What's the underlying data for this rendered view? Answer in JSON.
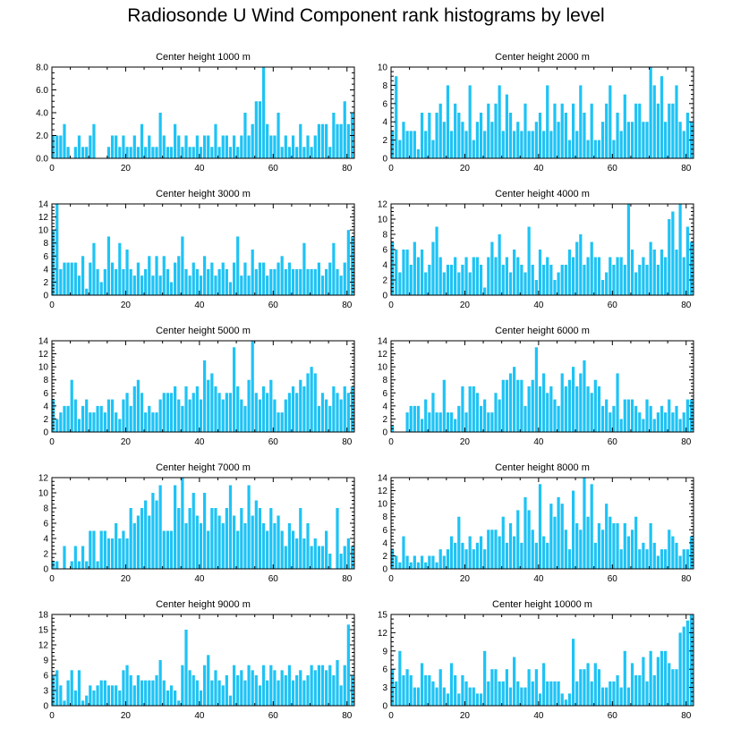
{
  "figure": {
    "title": "Radiosonde U Wind Component rank histograms by level"
  },
  "chart_data": [
    {
      "type": "bar",
      "title": "Center height 1000 m",
      "xlim": [
        0,
        82
      ],
      "ylim": [
        0,
        8
      ],
      "yticks": [
        0,
        2,
        4,
        6,
        8
      ],
      "ytick_labels": [
        "0.0",
        "2.0",
        "4.0",
        "6.0",
        "8.0"
      ],
      "xticks": [
        0,
        20,
        40,
        60,
        80
      ],
      "xtick_labels": [
        "0",
        "20",
        "40",
        "60",
        "80"
      ],
      "values": [
        2,
        2,
        2,
        3,
        1,
        0,
        1,
        2,
        1,
        1,
        2,
        3,
        0,
        0,
        0,
        1,
        2,
        2,
        1,
        2,
        1,
        1,
        2,
        1,
        3,
        1,
        2,
        1,
        1,
        4,
        2,
        1,
        1,
        3,
        2,
        1,
        2,
        1,
        1,
        2,
        1,
        2,
        2,
        1,
        3,
        1,
        2,
        2,
        1,
        2,
        1,
        2,
        4,
        2,
        3,
        5,
        5,
        8,
        3,
        2,
        2,
        4,
        1,
        2,
        1,
        2,
        1,
        3,
        1,
        2,
        1,
        2,
        3,
        3,
        3,
        1,
        4,
        3,
        3,
        5,
        3,
        4
      ]
    },
    {
      "type": "bar",
      "title": "Center height 2000 m",
      "xlim": [
        0,
        82
      ],
      "ylim": [
        0,
        10
      ],
      "yticks": [
        0,
        2,
        4,
        6,
        8,
        10
      ],
      "ytick_labels": [
        "0",
        "2",
        "4",
        "6",
        "8",
        "10"
      ],
      "xticks": [
        0,
        20,
        40,
        60,
        80
      ],
      "xtick_labels": [
        "0",
        "20",
        "40",
        "60",
        "80"
      ],
      "values": [
        3,
        9,
        2,
        4,
        3,
        3,
        3,
        1,
        5,
        3,
        5,
        2,
        5,
        6,
        4,
        8,
        3,
        6,
        5,
        4,
        3,
        8,
        2,
        4,
        5,
        3,
        6,
        4,
        6,
        8,
        3,
        7,
        5,
        3,
        4,
        3,
        6,
        3,
        3,
        4,
        5,
        3,
        8,
        3,
        6,
        4,
        6,
        5,
        2,
        6,
        3,
        8,
        5,
        2,
        6,
        2,
        2,
        4,
        6,
        8,
        2,
        5,
        3,
        7,
        4,
        4,
        6,
        6,
        4,
        4,
        10,
        8,
        6,
        9,
        4,
        6,
        6,
        8,
        4,
        3,
        5,
        4
      ]
    },
    {
      "type": "bar",
      "title": "Center height 3000 m",
      "xlim": [
        0,
        82
      ],
      "ylim": [
        0,
        14
      ],
      "yticks": [
        0,
        2,
        4,
        6,
        8,
        10,
        12,
        14
      ],
      "ytick_labels": [
        "0",
        "2",
        "4",
        "6",
        "8",
        "10",
        "12",
        "14"
      ],
      "xticks": [
        0,
        20,
        40,
        60,
        80
      ],
      "xtick_labels": [
        "0",
        "20",
        "40",
        "60",
        "80"
      ],
      "values": [
        10,
        14,
        4,
        5,
        5,
        5,
        5,
        3,
        6,
        1,
        5,
        8,
        4,
        2,
        4,
        9,
        5,
        4,
        8,
        4,
        7,
        4,
        3,
        5,
        3,
        4,
        6,
        3,
        6,
        3,
        6,
        4,
        2,
        5,
        6,
        9,
        4,
        3,
        5,
        4,
        3,
        6,
        4,
        5,
        3,
        4,
        5,
        4,
        2,
        5,
        9,
        3,
        5,
        3,
        7,
        4,
        5,
        5,
        3,
        4,
        4,
        5,
        6,
        4,
        5,
        4,
        4,
        4,
        8,
        4,
        4,
        4,
        5,
        3,
        4,
        5,
        8,
        4,
        3,
        5,
        10,
        9
      ]
    },
    {
      "type": "bar",
      "title": "Center height 4000 m",
      "xlim": [
        0,
        82
      ],
      "ylim": [
        0,
        12
      ],
      "yticks": [
        0,
        2,
        4,
        6,
        8,
        10,
        12
      ],
      "ytick_labels": [
        "0",
        "2",
        "4",
        "6",
        "8",
        "10",
        "12"
      ],
      "xticks": [
        0,
        20,
        40,
        60,
        80
      ],
      "xtick_labels": [
        "0",
        "20",
        "40",
        "60",
        "80"
      ],
      "values": [
        7,
        6,
        3,
        6,
        6,
        4,
        7,
        5,
        6,
        3,
        4,
        7,
        9,
        5,
        3,
        4,
        4,
        5,
        3,
        4,
        5,
        3,
        5,
        5,
        4,
        1,
        5,
        7,
        5,
        8,
        4,
        5,
        3,
        6,
        5,
        4,
        3,
        9,
        4,
        2,
        6,
        4,
        5,
        4,
        2,
        3,
        4,
        4,
        6,
        5,
        7,
        8,
        4,
        5,
        7,
        5,
        5,
        2,
        3,
        5,
        4,
        5,
        5,
        4,
        12,
        6,
        3,
        4,
        5,
        4,
        7,
        6,
        4,
        6,
        5,
        10,
        11,
        6,
        12,
        5,
        9,
        7
      ]
    },
    {
      "type": "bar",
      "title": "Center height 5000 m",
      "xlim": [
        0,
        82
      ],
      "ylim": [
        0,
        14
      ],
      "yticks": [
        0,
        2,
        4,
        6,
        8,
        10,
        12,
        14
      ],
      "ytick_labels": [
        "0",
        "2",
        "4",
        "6",
        "8",
        "10",
        "12",
        "14"
      ],
      "xticks": [
        0,
        20,
        40,
        60,
        80
      ],
      "xtick_labels": [
        "0",
        "20",
        "40",
        "60",
        "80"
      ],
      "values": [
        5,
        2,
        3,
        4,
        4,
        8,
        5,
        2,
        4,
        5,
        3,
        3,
        4,
        4,
        3,
        5,
        5,
        3,
        2,
        5,
        6,
        4,
        7,
        8,
        6,
        3,
        4,
        3,
        3,
        5,
        6,
        6,
        6,
        7,
        5,
        4,
        7,
        5,
        6,
        7,
        5,
        11,
        8,
        9,
        7,
        6,
        5,
        6,
        6,
        13,
        7,
        5,
        4,
        8,
        14,
        6,
        5,
        7,
        6,
        8,
        5,
        3,
        3,
        5,
        6,
        7,
        6,
        8,
        7,
        9,
        10,
        9,
        4,
        6,
        5,
        4,
        7,
        6,
        5,
        7,
        6,
        7
      ]
    },
    {
      "type": "bar",
      "title": "Center height 6000 m",
      "xlim": [
        0,
        82
      ],
      "ylim": [
        0,
        14
      ],
      "yticks": [
        0,
        2,
        4,
        6,
        8,
        10,
        12,
        14
      ],
      "ytick_labels": [
        "0",
        "2",
        "4",
        "6",
        "8",
        "10",
        "12",
        "14"
      ],
      "xticks": [
        0,
        20,
        40,
        60,
        80
      ],
      "xtick_labels": [
        "0",
        "20",
        "40",
        "60",
        "80"
      ],
      "values": [
        1,
        0,
        0,
        0,
        3,
        4,
        4,
        4,
        2,
        5,
        3,
        6,
        3,
        3,
        8,
        3,
        3,
        2,
        4,
        7,
        3,
        7,
        7,
        6,
        4,
        5,
        3,
        3,
        6,
        5,
        8,
        8,
        9,
        10,
        8,
        8,
        4,
        7,
        8,
        13,
        7,
        9,
        6,
        7,
        5,
        4,
        9,
        7,
        8,
        10,
        7,
        9,
        11,
        7,
        6,
        8,
        7,
        4,
        5,
        3,
        4,
        9,
        2,
        5,
        5,
        5,
        4,
        3,
        2,
        5,
        4,
        2,
        3,
        4,
        3,
        5,
        3,
        4,
        2,
        3,
        5,
        5
      ]
    },
    {
      "type": "bar",
      "title": "Center height 7000 m",
      "xlim": [
        0,
        82
      ],
      "ylim": [
        0,
        12
      ],
      "yticks": [
        0,
        2,
        4,
        6,
        8,
        10,
        12
      ],
      "ytick_labels": [
        "0",
        "2",
        "4",
        "6",
        "8",
        "10",
        "12"
      ],
      "xticks": [
        0,
        20,
        40,
        60,
        80
      ],
      "xtick_labels": [
        "0",
        "20",
        "40",
        "60",
        "80"
      ],
      "values": [
        1,
        1,
        0,
        3,
        0,
        1,
        3,
        1,
        3,
        1,
        5,
        5,
        1,
        5,
        5,
        4,
        4,
        6,
        4,
        5,
        4,
        8,
        6,
        7,
        8,
        9,
        7,
        10,
        9,
        11,
        5,
        5,
        5,
        11,
        8,
        12,
        6,
        8,
        10,
        7,
        6,
        10,
        5,
        8,
        8,
        7,
        6,
        8,
        11,
        7,
        5,
        8,
        6,
        11,
        7,
        9,
        8,
        6,
        5,
        8,
        6,
        7,
        5,
        3,
        6,
        5,
        4,
        8,
        4,
        6,
        3,
        4,
        3,
        3,
        5,
        2,
        0,
        8,
        2,
        3,
        4,
        3
      ]
    },
    {
      "type": "bar",
      "title": "Center height 8000 m",
      "xlim": [
        0,
        82
      ],
      "ylim": [
        0,
        14
      ],
      "yticks": [
        0,
        2,
        4,
        6,
        8,
        10,
        12,
        14
      ],
      "ytick_labels": [
        "0",
        "2",
        "4",
        "6",
        "8",
        "10",
        "12",
        "14"
      ],
      "xticks": [
        0,
        20,
        40,
        60,
        80
      ],
      "xtick_labels": [
        "0",
        "20",
        "40",
        "60",
        "80"
      ],
      "values": [
        3,
        2,
        1,
        5,
        2,
        1,
        2,
        1,
        2,
        1,
        2,
        2,
        1,
        3,
        2,
        3,
        5,
        4,
        8,
        4,
        3,
        5,
        3,
        4,
        5,
        3,
        6,
        6,
        6,
        5,
        8,
        4,
        7,
        5,
        9,
        4,
        11,
        9,
        6,
        4,
        13,
        5,
        4,
        10,
        8,
        11,
        10,
        6,
        3,
        12,
        7,
        6,
        14,
        8,
        13,
        4,
        7,
        6,
        10,
        8,
        7,
        7,
        3,
        7,
        5,
        6,
        8,
        3,
        4,
        3,
        7,
        4,
        2,
        3,
        3,
        6,
        5,
        4,
        2,
        3,
        3,
        5
      ]
    },
    {
      "type": "bar",
      "title": "Center height 9000 m",
      "xlim": [
        0,
        82
      ],
      "ylim": [
        0,
        18
      ],
      "yticks": [
        0,
        3,
        6,
        9,
        12,
        15,
        18
      ],
      "ytick_labels": [
        "0",
        "3",
        "6",
        "9",
        "12",
        "15",
        "18"
      ],
      "xticks": [
        0,
        20,
        40,
        60,
        80
      ],
      "xtick_labels": [
        "0",
        "20",
        "40",
        "60",
        "80"
      ],
      "values": [
        6,
        7,
        4,
        1,
        5,
        7,
        3,
        7,
        1,
        2,
        4,
        3,
        4,
        5,
        5,
        4,
        4,
        4,
        3,
        7,
        8,
        6,
        4,
        6,
        5,
        5,
        5,
        5,
        6,
        9,
        5,
        3,
        4,
        3,
        1,
        8,
        15,
        7,
        6,
        5,
        3,
        8,
        10,
        5,
        7,
        5,
        4,
        6,
        2,
        8,
        6,
        7,
        5,
        8,
        7,
        6,
        4,
        8,
        5,
        8,
        7,
        5,
        7,
        6,
        8,
        5,
        6,
        7,
        5,
        6,
        8,
        7,
        8,
        8,
        7,
        8,
        6,
        9,
        4,
        8,
        16,
        6
      ]
    },
    {
      "type": "bar",
      "title": "Center height 10000 m",
      "xlim": [
        0,
        82
      ],
      "ylim": [
        0,
        15
      ],
      "yticks": [
        0,
        3,
        6,
        9,
        12,
        15
      ],
      "ytick_labels": [
        "0",
        "3",
        "6",
        "9",
        "12",
        "15"
      ],
      "xticks": [
        0,
        20,
        40,
        60,
        80
      ],
      "xtick_labels": [
        "0",
        "20",
        "40",
        "60",
        "80"
      ],
      "values": [
        6,
        4,
        9,
        5,
        6,
        5,
        3,
        3,
        7,
        5,
        5,
        4,
        3,
        6,
        3,
        2,
        7,
        5,
        2,
        5,
        4,
        3,
        3,
        2,
        2,
        9,
        4,
        6,
        6,
        4,
        4,
        6,
        3,
        8,
        4,
        3,
        3,
        6,
        4,
        6,
        2,
        7,
        4,
        4,
        4,
        4,
        2,
        1,
        2,
        11,
        4,
        6,
        6,
        7,
        4,
        7,
        6,
        3,
        3,
        4,
        4,
        5,
        3,
        9,
        3,
        7,
        5,
        5,
        8,
        4,
        9,
        5,
        8,
        9,
        9,
        7,
        6,
        6,
        12,
        13,
        14,
        15
      ]
    }
  ]
}
